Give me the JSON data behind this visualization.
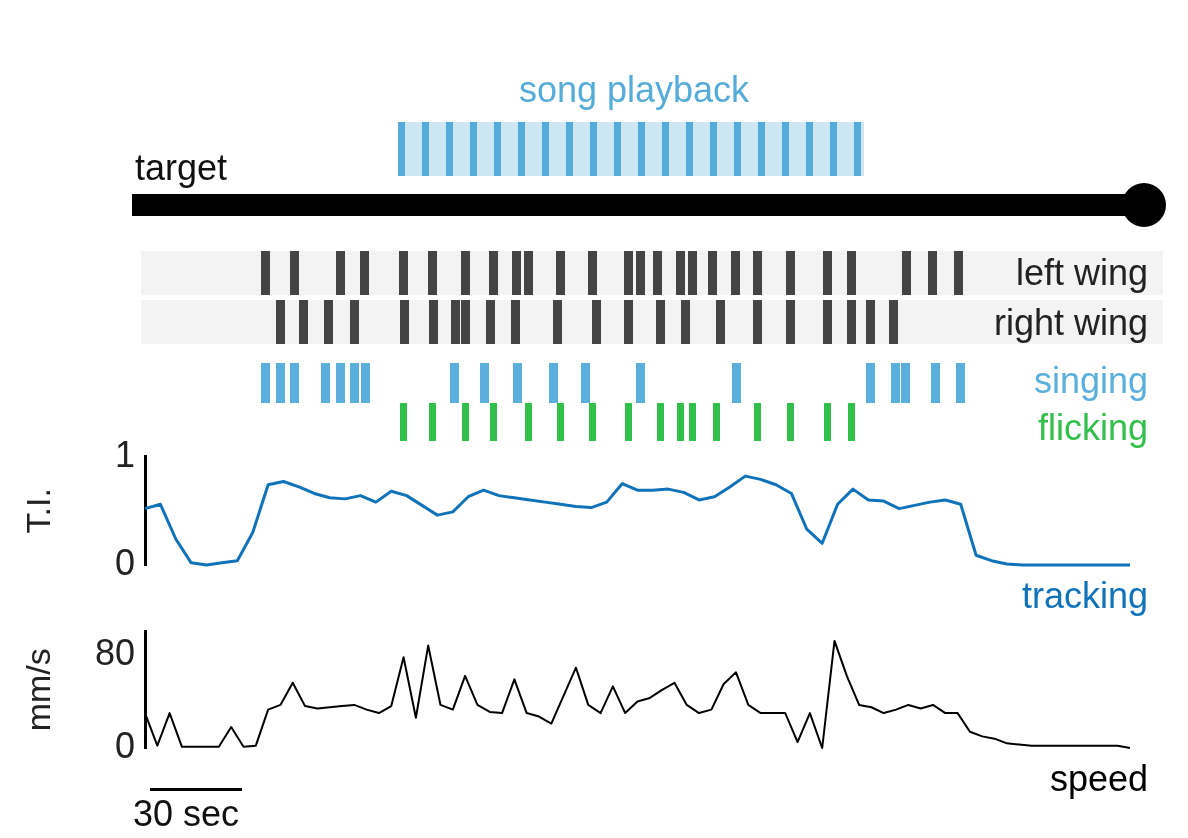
{
  "chart_data": [
    {
      "type": "other",
      "annotations": [
        "song playback",
        "target",
        "left wing",
        "right wing",
        "singing",
        "flicking"
      ]
    },
    {
      "type": "line",
      "ylabel": "T.I.",
      "ylim": [
        0,
        1
      ],
      "yticks": [
        0,
        1
      ],
      "tick_labels": "y",
      "marker": "none",
      "categories": [
        null,
        null,
        null,
        null,
        null,
        null,
        null,
        null,
        null,
        null,
        null,
        null,
        null,
        null,
        null,
        null,
        null,
        null,
        null,
        null,
        null,
        null,
        null,
        null,
        null,
        null,
        null,
        null,
        null,
        null,
        null,
        null,
        null,
        null,
        null,
        null,
        null,
        null,
        null,
        null,
        null,
        null,
        null,
        null,
        null,
        null,
        null,
        null,
        null,
        null,
        null,
        null,
        null,
        null,
        null,
        null,
        null,
        null,
        null,
        null,
        null,
        null,
        null,
        null,
        null
      ],
      "series": [
        {
          "name": "tracking",
          "color": "#1072b8",
          "values": [
            0.52,
            0.56,
            0.24,
            0.02,
            0,
            0.02,
            0.04,
            0.3,
            0.74,
            0.77,
            0.72,
            0.66,
            0.62,
            0.61,
            0.64,
            0.58,
            0.68,
            0.64,
            0.55,
            0.46,
            0.49,
            0.63,
            0.69,
            0.64,
            0.62,
            0.6,
            0.58,
            0.56,
            0.54,
            0.53,
            0.58,
            0.75,
            0.69,
            0.69,
            0.7,
            0.67,
            0.6,
            0.63,
            0.72,
            0.82,
            0.79,
            0.74,
            0.66,
            0.33,
            0.2,
            0.56,
            0.7,
            0.6,
            0.59,
            0.52,
            0.55,
            0.58,
            0.6,
            0.56,
            0.09,
            0.04,
            0.01,
            0,
            0,
            0,
            0,
            0,
            0,
            0,
            0
          ]
        }
      ]
    },
    {
      "type": "line",
      "ylabel": "mm/s",
      "ylim": [
        0,
        100
      ],
      "yticks": [
        0,
        80
      ],
      "tick_labels": "y",
      "marker": "none",
      "annotations": [
        "30 sec"
      ],
      "categories": [
        null,
        null,
        null,
        null,
        null,
        null,
        null,
        null,
        null,
        null,
        null,
        null,
        null,
        null,
        null,
        null,
        null,
        null,
        null,
        null,
        null,
        null,
        null,
        null,
        null,
        null,
        null,
        null,
        null,
        null,
        null,
        null,
        null,
        null,
        null,
        null,
        null,
        null,
        null,
        null,
        null,
        null,
        null,
        null,
        null,
        null,
        null,
        null,
        null,
        null,
        null,
        null,
        null,
        null,
        null,
        null,
        null,
        null,
        null,
        null,
        null,
        null,
        null,
        null,
        null,
        null,
        null,
        null,
        null,
        null,
        null,
        null,
        null,
        null,
        null,
        null,
        null,
        null,
        null,
        null,
        null
      ],
      "series": [
        {
          "name": "speed",
          "color": "#000000",
          "values": [
            30,
            2,
            30,
            1,
            1,
            1,
            1,
            18,
            1,
            2,
            33,
            37,
            56,
            36,
            34,
            35,
            36,
            37,
            33,
            30,
            36,
            78,
            26,
            88,
            37,
            33,
            62,
            37,
            31,
            30,
            59,
            30,
            27,
            21,
            45,
            69,
            37,
            30,
            53,
            30,
            40,
            43,
            50,
            56,
            37,
            30,
            33,
            55,
            65,
            37,
            30,
            30,
            30,
            5,
            30,
            0,
            92,
            62,
            37,
            35,
            30,
            33,
            37,
            34,
            37,
            30,
            30,
            14,
            10,
            8,
            4,
            3,
            2,
            2,
            2,
            2,
            2,
            2,
            2,
            2,
            0
          ]
        }
      ]
    }
  ]
}
